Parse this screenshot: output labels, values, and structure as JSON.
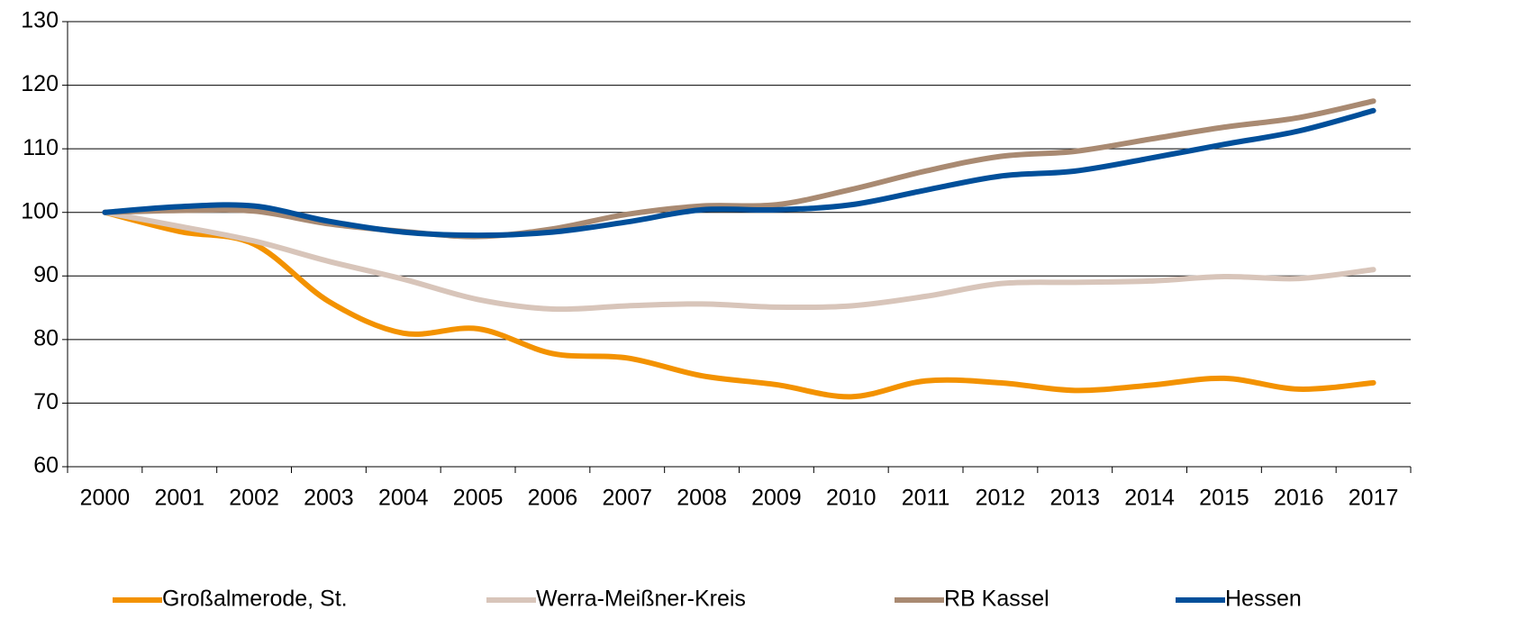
{
  "chart_data": {
    "type": "line",
    "categories": [
      "2000",
      "2001",
      "2002",
      "2003",
      "2004",
      "2005",
      "2006",
      "2007",
      "2008",
      "2009",
      "2010",
      "2011",
      "2012",
      "2013",
      "2014",
      "2015",
      "2016",
      "2017"
    ],
    "series": [
      {
        "name": "Großalmerode, St.",
        "color": "#f39200",
        "values": [
          100,
          97,
          95,
          86,
          81,
          81.7,
          77.8,
          77.1,
          74.3,
          72.9,
          71,
          73.5,
          73.2,
          72,
          72.8,
          73.9,
          72.2,
          73.2
        ]
      },
      {
        "name": "Werra-Meißner-Kreis",
        "color": "#d8c5ba",
        "values": [
          100,
          97.8,
          95.5,
          92.3,
          89.5,
          86.3,
          84.8,
          85.3,
          85.6,
          85.1,
          85.3,
          86.8,
          88.8,
          89,
          89.2,
          89.9,
          89.6,
          91
        ]
      },
      {
        "name": "RB Kassel",
        "color": "#a98a72",
        "values": [
          100,
          100.3,
          100.2,
          98.2,
          97,
          96.2,
          97.4,
          99.7,
          101,
          101.2,
          103.6,
          106.5,
          108.8,
          109.6,
          111.5,
          113.4,
          114.9,
          117.5
        ]
      },
      {
        "name": "Hessen",
        "color": "#004f9a",
        "values": [
          100,
          100.9,
          101,
          98.6,
          96.9,
          96.4,
          96.9,
          98.5,
          100.4,
          100.4,
          101.2,
          103.5,
          105.7,
          106.5,
          108.5,
          110.7,
          112.8,
          116
        ]
      }
    ],
    "ylim": [
      60,
      130
    ],
    "yticks": [
      60,
      70,
      80,
      90,
      100,
      110,
      120,
      130
    ],
    "grid": true
  }
}
